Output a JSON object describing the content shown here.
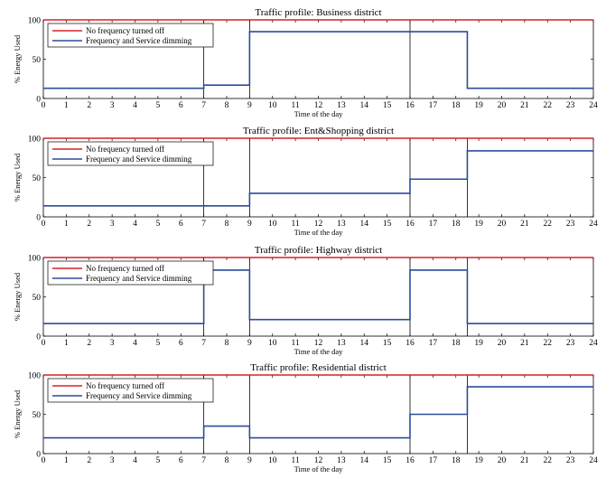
{
  "chart_data": [
    {
      "type": "line",
      "title": "Traffic profile: Business district",
      "xlabel": "Time of the day",
      "ylabel": "% Energy Used",
      "xlim": [
        0,
        24
      ],
      "ylim": [
        0,
        100
      ],
      "x_ticks": [
        "0",
        "1",
        "2",
        "3",
        "4",
        "5",
        "6",
        "7",
        "8",
        "9",
        "10",
        "11",
        "12",
        "13",
        "14",
        "15",
        "16",
        "17",
        "18",
        "19",
        "20",
        "21",
        "22",
        "23",
        "24"
      ],
      "y_ticks": [
        "0",
        "50",
        "100"
      ],
      "vlines": [
        7,
        9,
        16
      ],
      "legend_position": "top-left",
      "series": [
        {
          "name": "No frequency turned off",
          "color": "#d62027",
          "x": [
            0,
            24
          ],
          "y": [
            100,
            100
          ]
        },
        {
          "name": "Frequency and Service dimming",
          "color": "#2b4c9b",
          "x": [
            0,
            7,
            7,
            9,
            9,
            18.5,
            18.5,
            24
          ],
          "y": [
            13,
            13,
            17,
            17,
            85,
            85,
            13,
            13
          ]
        }
      ]
    },
    {
      "type": "line",
      "title": "Traffic profile: Ent&Shopping district",
      "xlabel": "Time of the day",
      "ylabel": "% Energy Used",
      "xlim": [
        0,
        24
      ],
      "ylim": [
        0,
        100
      ],
      "x_ticks": [
        "0",
        "1",
        "2",
        "3",
        "4",
        "5",
        "6",
        "7",
        "8",
        "9",
        "10",
        "11",
        "12",
        "13",
        "14",
        "15",
        "16",
        "17",
        "18",
        "19",
        "20",
        "21",
        "22",
        "23",
        "24"
      ],
      "y_ticks": [
        "0",
        "50",
        "100"
      ],
      "vlines": [
        7,
        9,
        16,
        18.5
      ],
      "legend_position": "top-left",
      "series": [
        {
          "name": "No frequency turned off",
          "color": "#d62027",
          "x": [
            0,
            24
          ],
          "y": [
            100,
            100
          ]
        },
        {
          "name": "Frequency and Service dimming",
          "color": "#2b4c9b",
          "x": [
            0,
            9,
            9,
            16,
            16,
            18.5,
            18.5,
            24
          ],
          "y": [
            14,
            14,
            30,
            30,
            48,
            48,
            84,
            84
          ]
        }
      ]
    },
    {
      "type": "line",
      "title": "Traffic profile: Highway district",
      "xlabel": "Time of the day",
      "ylabel": "% Energy Used",
      "xlim": [
        0,
        24
      ],
      "ylim": [
        0,
        100
      ],
      "x_ticks": [
        "0",
        "1",
        "2",
        "3",
        "4",
        "5",
        "6",
        "7",
        "8",
        "9",
        "10",
        "11",
        "12",
        "13",
        "14",
        "15",
        "16",
        "17",
        "18",
        "19",
        "20",
        "21",
        "22",
        "23",
        "24"
      ],
      "y_ticks": [
        "0",
        "50",
        "100"
      ],
      "vlines": [
        7,
        9,
        16,
        18.5
      ],
      "legend_position": "top-left",
      "series": [
        {
          "name": "No frequency turned off",
          "color": "#d62027",
          "x": [
            0,
            24
          ],
          "y": [
            100,
            100
          ]
        },
        {
          "name": "Frequency and Service dimming",
          "color": "#2b4c9b",
          "x": [
            0,
            7,
            7,
            9,
            9,
            16,
            16,
            18.5,
            18.5,
            24
          ],
          "y": [
            16,
            16,
            84,
            84,
            21,
            21,
            84,
            84,
            16,
            16
          ]
        }
      ]
    },
    {
      "type": "line",
      "title": "Traffic profile: Residential district",
      "xlabel": "Time of the day",
      "ylabel": "% Energy Used",
      "xlim": [
        0,
        24
      ],
      "ylim": [
        0,
        100
      ],
      "x_ticks": [
        "0",
        "1",
        "2",
        "3",
        "4",
        "5",
        "6",
        "7",
        "8",
        "9",
        "10",
        "11",
        "12",
        "13",
        "14",
        "15",
        "16",
        "17",
        "18",
        "19",
        "20",
        "21",
        "22",
        "23",
        "24"
      ],
      "y_ticks": [
        "0",
        "50",
        "100"
      ],
      "vlines": [
        7,
        9,
        16,
        18.5
      ],
      "legend_position": "top-left",
      "series": [
        {
          "name": "No frequency turned off",
          "color": "#d62027",
          "x": [
            0,
            24
          ],
          "y": [
            100,
            100
          ]
        },
        {
          "name": "Frequency and Service dimming",
          "color": "#2b4c9b",
          "x": [
            0,
            7,
            7,
            9,
            9,
            16,
            16,
            18.5,
            18.5,
            24
          ],
          "y": [
            20,
            20,
            35,
            35,
            20,
            20,
            50,
            50,
            85,
            85
          ]
        }
      ]
    }
  ]
}
